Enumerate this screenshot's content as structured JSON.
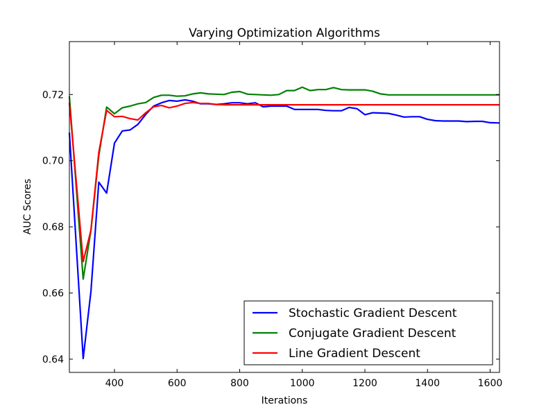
{
  "chart_data": {
    "type": "line",
    "title": "Varying Optimization Algorithms",
    "xlabel": "Iterations",
    "ylabel": "AUC Scores",
    "xlim": [
      256,
      1630
    ],
    "ylim": [
      0.636,
      0.736
    ],
    "xticks": [
      400,
      600,
      800,
      1000,
      1200,
      1400,
      1600
    ],
    "yticks": [
      0.64,
      0.66,
      0.68,
      0.7,
      0.72
    ],
    "xtick_labels": [
      "400",
      "600",
      "800",
      "1000",
      "1200",
      "1400",
      "1600"
    ],
    "ytick_labels": [
      "0.64",
      "0.66",
      "0.68",
      "0.70",
      "0.72"
    ],
    "grid": false,
    "legend_position": "lower-right",
    "series": [
      {
        "name": "Stochastic Gradient Descent",
        "color": "#0000ff",
        "x": [
          256,
          300,
          325,
          350,
          375,
          400,
          425,
          450,
          475,
          500,
          525,
          550,
          575,
          600,
          625,
          650,
          675,
          700,
          725,
          750,
          775,
          800,
          825,
          850,
          875,
          900,
          925,
          950,
          975,
          1000,
          1025,
          1050,
          1075,
          1100,
          1125,
          1150,
          1175,
          1200,
          1225,
          1250,
          1275,
          1300,
          1325,
          1350,
          1375,
          1400,
          1425,
          1450,
          1475,
          1500,
          1525,
          1550,
          1575,
          1600,
          1630
        ],
        "y": [
          0.7085,
          0.6402,
          0.6605,
          0.6935,
          0.6902,
          0.7053,
          0.709,
          0.7093,
          0.711,
          0.714,
          0.7165,
          0.7175,
          0.7182,
          0.718,
          0.7184,
          0.718,
          0.7172,
          0.7172,
          0.717,
          0.7172,
          0.7175,
          0.7175,
          0.7172,
          0.7175,
          0.7163,
          0.7165,
          0.7165,
          0.7165,
          0.7155,
          0.7155,
          0.7155,
          0.7155,
          0.7152,
          0.7151,
          0.7151,
          0.7161,
          0.7157,
          0.7139,
          0.7145,
          0.7144,
          0.7143,
          0.7138,
          0.7132,
          0.7133,
          0.7133,
          0.7125,
          0.7121,
          0.712,
          0.712,
          0.712,
          0.7118,
          0.7119,
          0.7119,
          0.7115,
          0.7114
        ]
      },
      {
        "name": "Conjugate Gradient Descent",
        "color": "#008000",
        "x": [
          256,
          300,
          325,
          350,
          375,
          400,
          425,
          450,
          475,
          500,
          525,
          550,
          575,
          600,
          625,
          650,
          675,
          700,
          725,
          750,
          775,
          800,
          825,
          850,
          875,
          900,
          925,
          950,
          975,
          1000,
          1025,
          1050,
          1075,
          1100,
          1125,
          1150,
          1175,
          1200,
          1225,
          1250,
          1275,
          1300,
          1350,
          1400,
          1450,
          1500,
          1550,
          1600,
          1630
        ],
        "y": [
          0.7195,
          0.6642,
          0.679,
          0.7015,
          0.7162,
          0.7142,
          0.716,
          0.7165,
          0.7172,
          0.7176,
          0.7191,
          0.7198,
          0.7198,
          0.7195,
          0.7196,
          0.7202,
          0.7205,
          0.7202,
          0.7201,
          0.72,
          0.7207,
          0.7209,
          0.7201,
          0.72,
          0.7199,
          0.7198,
          0.72,
          0.7212,
          0.7212,
          0.7222,
          0.7212,
          0.7215,
          0.7215,
          0.7221,
          0.7215,
          0.7214,
          0.7214,
          0.7214,
          0.721,
          0.7202,
          0.7199,
          0.7199,
          0.7199,
          0.7199,
          0.7199,
          0.7199,
          0.7199,
          0.7199,
          0.7199
        ]
      },
      {
        "name": "Line Gradient Descent",
        "color": "#ff0000",
        "x": [
          256,
          300,
          325,
          350,
          375,
          400,
          425,
          450,
          475,
          500,
          525,
          550,
          575,
          600,
          625,
          650,
          675,
          700,
          725,
          750,
          800,
          850,
          900,
          950,
          1000,
          1100,
          1200,
          1300,
          1400,
          1500,
          1600,
          1630
        ],
        "y": [
          0.7175,
          0.6695,
          0.679,
          0.7025,
          0.7152,
          0.7133,
          0.7134,
          0.7127,
          0.7123,
          0.7145,
          0.7163,
          0.7167,
          0.716,
          0.7165,
          0.7173,
          0.7176,
          0.7173,
          0.7173,
          0.717,
          0.7169,
          0.7169,
          0.7169,
          0.7169,
          0.7169,
          0.7169,
          0.7169,
          0.7169,
          0.7169,
          0.7169,
          0.7169,
          0.7169,
          0.7169
        ]
      }
    ]
  }
}
